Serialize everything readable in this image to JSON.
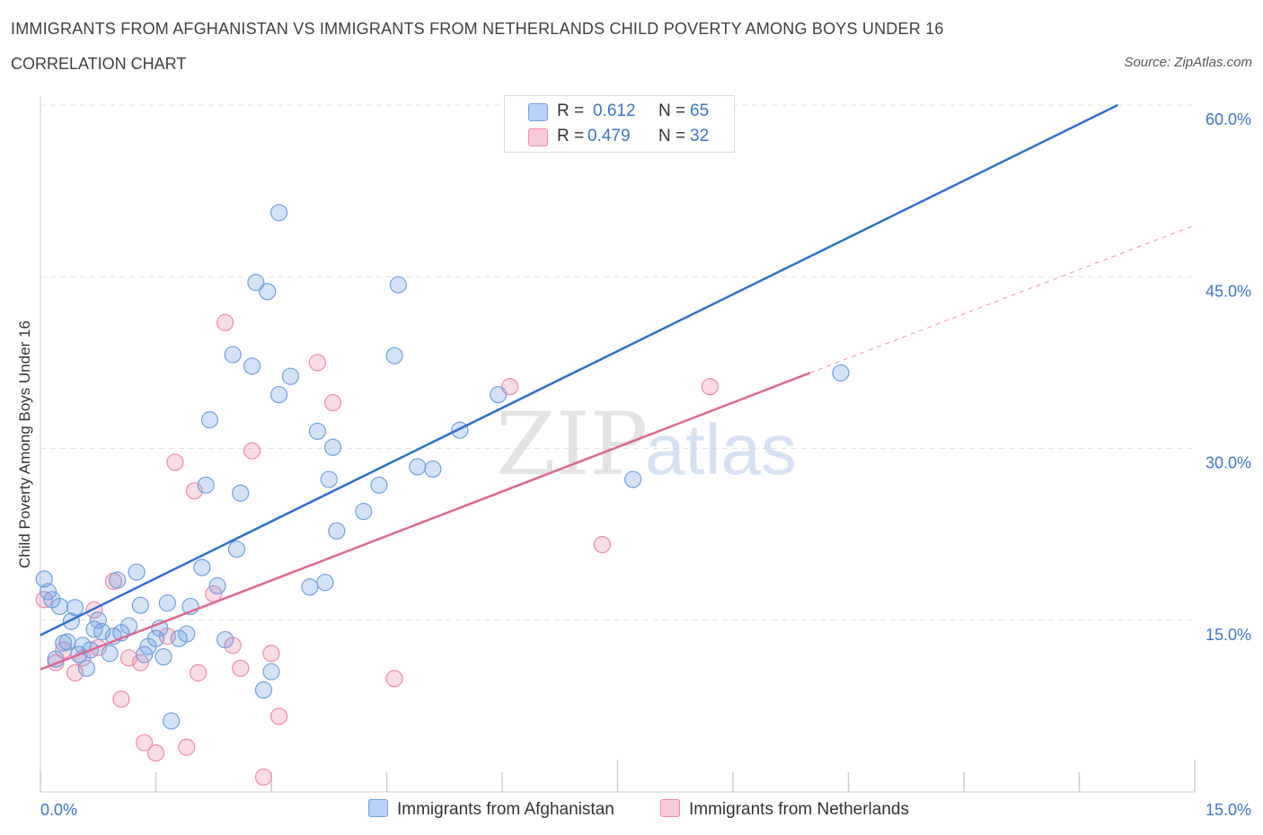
{
  "title": "IMMIGRANTS FROM AFGHANISTAN VS IMMIGRANTS FROM NETHERLANDS CHILD POVERTY AMONG BOYS UNDER 16",
  "subtitle": "CORRELATION CHART",
  "source": "Source: ZipAtlas.com",
  "watermark": {
    "zip": "ZIP",
    "atlas": "atlas"
  },
  "legend": {
    "r_label": "R =",
    "n_label": "N =",
    "rows": [
      {
        "r": "0.612",
        "n": "65",
        "color": "#6fa0e0"
      },
      {
        "r": "0.479",
        "n": "32",
        "color": "#f08aa9"
      }
    ]
  },
  "bottom_legend": [
    {
      "label": "Immigrants from Afghanistan",
      "color": "#6fa0e0"
    },
    {
      "label": "Immigrants from Netherlands",
      "color": "#f08aa9"
    }
  ],
  "chart_data": {
    "type": "scatter",
    "title": "IMMIGRANTS FROM AFGHANISTAN VS IMMIGRANTS FROM NETHERLANDS CHILD POVERTY AMONG BOYS UNDER 16",
    "xlabel": "",
    "ylabel": "Child Poverty Among Boys Under 16",
    "xlim": [
      0,
      15
    ],
    "ylim": [
      0,
      60
    ],
    "x_tick_labels": [
      "0.0%",
      "15.0%"
    ],
    "y_ticks": [
      15,
      30,
      45,
      60
    ],
    "y_tick_labels": [
      "15.0%",
      "30.0%",
      "45.0%",
      "60.0%"
    ],
    "grid": true,
    "legend_position": "top-center",
    "series": [
      {
        "name": "Immigrants from Afghanistan",
        "color": "#6fa0e0",
        "stroke": "#2f6fcf",
        "trend": {
          "x": [
            0,
            14
          ],
          "y": [
            13.7,
            60.0
          ],
          "dashed_extension": false
        },
        "points": [
          [
            0.05,
            18.6
          ],
          [
            0.1,
            17.5
          ],
          [
            0.15,
            16.8
          ],
          [
            0.2,
            11.6
          ],
          [
            0.25,
            16.2
          ],
          [
            0.3,
            13.0
          ],
          [
            0.4,
            14.9
          ],
          [
            0.45,
            16.1
          ],
          [
            0.5,
            12.0
          ],
          [
            0.55,
            12.8
          ],
          [
            0.6,
            10.8
          ],
          [
            0.65,
            12.4
          ],
          [
            0.7,
            14.2
          ],
          [
            0.75,
            15.0
          ],
          [
            0.8,
            14.0
          ],
          [
            0.9,
            12.1
          ],
          [
            0.95,
            13.6
          ],
          [
            1.0,
            18.5
          ],
          [
            1.05,
            13.9
          ],
          [
            1.15,
            14.5
          ],
          [
            1.25,
            19.2
          ],
          [
            1.3,
            16.3
          ],
          [
            1.35,
            12.0
          ],
          [
            1.4,
            12.7
          ],
          [
            1.5,
            13.4
          ],
          [
            1.55,
            14.3
          ],
          [
            1.6,
            11.8
          ],
          [
            1.65,
            16.5
          ],
          [
            1.7,
            6.2
          ],
          [
            1.8,
            13.4
          ],
          [
            1.9,
            13.8
          ],
          [
            1.95,
            16.2
          ],
          [
            2.1,
            19.6
          ],
          [
            2.15,
            26.8
          ],
          [
            2.2,
            32.5
          ],
          [
            2.3,
            18.0
          ],
          [
            2.4,
            13.3
          ],
          [
            2.5,
            38.2
          ],
          [
            2.55,
            21.2
          ],
          [
            2.6,
            26.1
          ],
          [
            2.75,
            37.2
          ],
          [
            2.8,
            44.5
          ],
          [
            2.9,
            8.9
          ],
          [
            2.95,
            43.7
          ],
          [
            3.0,
            10.5
          ],
          [
            3.1,
            34.7
          ],
          [
            3.1,
            50.6
          ],
          [
            3.25,
            36.3
          ],
          [
            3.5,
            17.9
          ],
          [
            3.6,
            31.5
          ],
          [
            3.7,
            18.3
          ],
          [
            3.75,
            27.3
          ],
          [
            3.8,
            30.1
          ],
          [
            3.85,
            22.8
          ],
          [
            4.2,
            24.5
          ],
          [
            4.4,
            26.8
          ],
          [
            4.6,
            38.1
          ],
          [
            4.65,
            44.3
          ],
          [
            4.9,
            28.4
          ],
          [
            5.1,
            28.2
          ],
          [
            5.45,
            31.6
          ],
          [
            5.95,
            34.7
          ],
          [
            7.7,
            27.3
          ],
          [
            10.4,
            36.6
          ],
          [
            0.35,
            13.1
          ]
        ]
      },
      {
        "name": "Immigrants from Netherlands",
        "color": "#f08aa9",
        "stroke": "#e0668f",
        "trend": {
          "x": [
            0,
            10
          ],
          "y": [
            10.7,
            36.6
          ],
          "dashed_extension_to": [
            15,
            49.5
          ]
        },
        "points": [
          [
            0.05,
            16.8
          ],
          [
            0.2,
            11.3
          ],
          [
            0.3,
            12.4
          ],
          [
            0.45,
            10.4
          ],
          [
            0.55,
            11.7
          ],
          [
            0.7,
            15.9
          ],
          [
            0.75,
            12.6
          ],
          [
            0.95,
            18.4
          ],
          [
            1.05,
            8.1
          ],
          [
            1.15,
            11.7
          ],
          [
            1.3,
            11.3
          ],
          [
            1.35,
            4.3
          ],
          [
            1.5,
            3.4
          ],
          [
            1.65,
            13.6
          ],
          [
            1.75,
            28.8
          ],
          [
            1.9,
            3.9
          ],
          [
            2.0,
            26.3
          ],
          [
            2.05,
            10.4
          ],
          [
            2.25,
            17.3
          ],
          [
            2.4,
            41.0
          ],
          [
            2.5,
            12.8
          ],
          [
            2.6,
            10.8
          ],
          [
            2.75,
            29.8
          ],
          [
            2.9,
            1.3
          ],
          [
            3.0,
            12.1
          ],
          [
            3.1,
            6.6
          ],
          [
            3.6,
            37.5
          ],
          [
            3.8,
            34.0
          ],
          [
            4.6,
            9.9
          ],
          [
            6.1,
            35.4
          ],
          [
            7.3,
            21.6
          ],
          [
            8.7,
            35.4
          ]
        ]
      }
    ]
  }
}
